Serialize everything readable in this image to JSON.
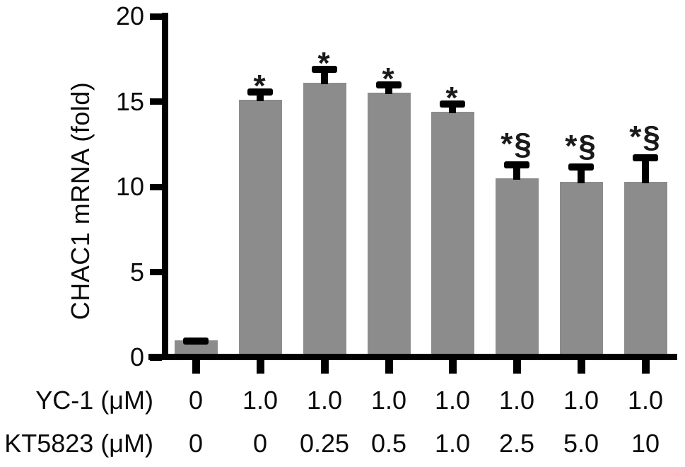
{
  "chart_data": {
    "type": "bar",
    "title": "",
    "ylabel": "CHAC1 mRNA (fold)",
    "xlabel": "",
    "ylim": [
      0,
      20
    ],
    "yticks": [
      0,
      5,
      10,
      15,
      20
    ],
    "grid": false,
    "legend": "none",
    "bar_color": "#8c8c8c",
    "axis_color": "#000000",
    "series": [
      {
        "name": "CHAC1 mRNA (fold)",
        "values": [
          1.0,
          15.1,
          16.1,
          15.5,
          14.4,
          10.5,
          10.3,
          10.3
        ],
        "errors": [
          0.15,
          0.65,
          1.0,
          0.7,
          0.65,
          1.0,
          1.05,
          1.6
        ],
        "annotations": [
          "",
          "*",
          "*",
          "*",
          "*",
          "*§",
          "*§",
          "*§"
        ]
      }
    ],
    "x_axis_rows": [
      {
        "label": "YC-1 (μM)",
        "values": [
          "0",
          "1.0",
          "1.0",
          "1.0",
          "1.0",
          "1.0",
          "1.0",
          "1.0"
        ]
      },
      {
        "label": "KT5823 (μM)",
        "values": [
          "0",
          "0",
          "0.25",
          "0.5",
          "1.0",
          "2.5",
          "5.0",
          "10"
        ]
      }
    ]
  }
}
